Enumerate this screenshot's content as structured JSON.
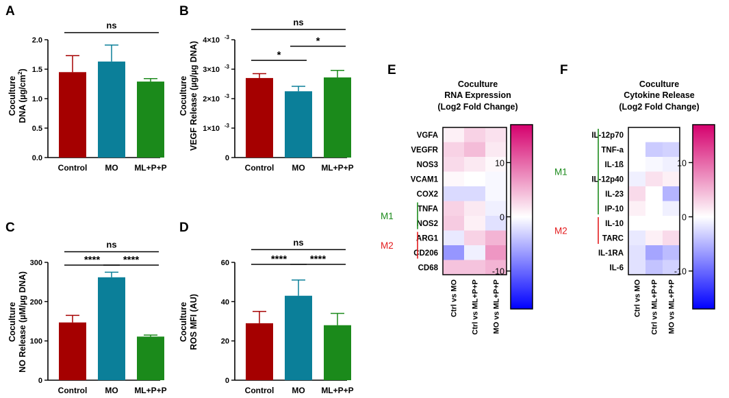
{
  "colors": {
    "control": "#a50000",
    "mo": "#0b7f99",
    "mlpp": "#1b8a1b",
    "axis": "#000000",
    "m1_marker": "#1b8a1b",
    "m2_marker": "#e31a1c",
    "heat_max": "#d5006d",
    "heat_mid": "#ffffff",
    "heat_min": "#0000ff"
  },
  "panel_letters": [
    "A",
    "B",
    "C",
    "D",
    "E",
    "F"
  ],
  "chart_data": [
    {
      "id": "A",
      "type": "bar",
      "categories": [
        "Control",
        "MO",
        "ML+P+P"
      ],
      "values": [
        1.45,
        1.63,
        1.29
      ],
      "errors": [
        0.28,
        0.28,
        0.05
      ],
      "ylabel": [
        "Coculture",
        "DNA (µg/cm²)"
      ],
      "ylim": [
        0,
        2.0
      ],
      "ticks": [
        0.0,
        0.5,
        1.0,
        1.5,
        2.0
      ],
      "tick_labels": [
        "0.0",
        "0.5",
        "1.0",
        "1.5",
        "2.0"
      ],
      "sig": [
        {
          "from": 0,
          "to": 2,
          "label": "ns",
          "y": 2.12
        }
      ]
    },
    {
      "id": "B",
      "type": "bar",
      "categories": [
        "Control",
        "MO",
        "ML+P+P"
      ],
      "values": [
        2.7,
        2.25,
        2.72
      ],
      "errors": [
        0.15,
        0.17,
        0.24
      ],
      "ylabel": [
        "Coculture",
        "VEGF Release (µg/µg DNA)"
      ],
      "ylim": [
        0,
        4
      ],
      "ticks": [
        0,
        1,
        2,
        3,
        4
      ],
      "tick_labels": [
        "0",
        "1×10",
        "2×10",
        "3×10",
        "4×10"
      ],
      "tick_exp": [
        "",
        "-3",
        "-3",
        "-3",
        "-3"
      ],
      "sig": [
        {
          "from": 0,
          "to": 2,
          "label": "ns",
          "y": 4.35
        },
        {
          "from": 1,
          "to": 2,
          "label": "*",
          "y": 3.78
        },
        {
          "from": 0,
          "to": 1,
          "label": "*",
          "y": 3.3
        }
      ]
    },
    {
      "id": "C",
      "type": "bar",
      "categories": [
        "Control",
        "MO",
        "ML+P+P"
      ],
      "values": [
        147,
        262,
        111
      ],
      "errors": [
        18,
        13,
        4
      ],
      "ylabel": [
        "Coculture",
        "NO Release (µM/µg DNA)"
      ],
      "ylim": [
        0,
        300
      ],
      "ticks": [
        0,
        100,
        200,
        300
      ],
      "tick_labels": [
        "0",
        "100",
        "200",
        "300"
      ],
      "sig": [
        {
          "from": 0,
          "to": 2,
          "label": "ns",
          "y": 327
        },
        {
          "from": 0,
          "to": 1,
          "label": "****",
          "y": 293
        },
        {
          "from": 1,
          "to": 2,
          "label": "****",
          "y": 293
        }
      ]
    },
    {
      "id": "D",
      "type": "bar",
      "categories": [
        "Control",
        "MO",
        "ML+P+P"
      ],
      "values": [
        29,
        43,
        28
      ],
      "errors": [
        6,
        8,
        6
      ],
      "ylabel": [
        "Coculture",
        "ROS MFI (AU)"
      ],
      "ylim": [
        0,
        60
      ],
      "ticks": [
        0,
        20,
        40,
        60
      ],
      "tick_labels": [
        "0",
        "20",
        "40",
        "60"
      ],
      "sig": [
        {
          "from": 0,
          "to": 2,
          "label": "ns",
          "y": 66.5
        },
        {
          "from": 0,
          "to": 1,
          "label": "****",
          "y": 59
        },
        {
          "from": 1,
          "to": 2,
          "label": "****",
          "y": 59
        }
      ]
    },
    {
      "id": "E",
      "type": "heatmap",
      "title": [
        "Coculture",
        "RNA Expression",
        "(Log2 Fold Change)"
      ],
      "rows": [
        "VGFA",
        "VEGFR",
        "NOS3",
        "VCAM1",
        "COX2",
        "TNFA",
        "NOS2",
        "ARG1",
        "CD206",
        "CD68"
      ],
      "cols": [
        "Ctrl vs MO",
        "Ctrl vs ML+P+P",
        "MO vs ML+P+P"
      ],
      "values": [
        [
          1,
          3,
          2
        ],
        [
          3,
          4.5,
          1.5
        ],
        [
          2.5,
          1.5,
          0.5
        ],
        [
          0.5,
          0,
          -0.5
        ],
        [
          -2.5,
          -2.5,
          -0.5
        ],
        [
          3,
          1.5,
          -1
        ],
        [
          3.5,
          1,
          -2
        ],
        [
          -1.5,
          3,
          5
        ],
        [
          -7,
          -1,
          7
        ],
        [
          4,
          4,
          5
        ]
      ],
      "colorbar": {
        "range": [
          -17,
          17
        ],
        "ticks": [
          10,
          0,
          -10
        ],
        "tick_labels": [
          "10",
          "0",
          "-10"
        ]
      },
      "groups": [
        {
          "label": "M1",
          "color_key": "m1_marker"
        },
        {
          "label": "M2",
          "color_key": "m2_marker"
        }
      ]
    },
    {
      "id": "F",
      "type": "heatmap",
      "title": [
        "Coculture",
        "Cytokine Release",
        "(Log2 Fold Change)"
      ],
      "rows": [
        "IL-12p70",
        "TNF-a",
        "IL-1ß",
        "IL-12p40",
        "IL-23",
        "IP-10",
        "IL-10",
        "TARC",
        "IL-1RA",
        "IL-6"
      ],
      "cols": [
        "Ctrl vs MO",
        "Ctrl vs ML+P+P",
        "MO vs ML+P+P"
      ],
      "values": [
        [
          0,
          0,
          0
        ],
        [
          0,
          -3.5,
          -3
        ],
        [
          0,
          -0.5,
          -1
        ],
        [
          -1,
          2,
          1
        ],
        [
          2.5,
          0,
          -5
        ],
        [
          1,
          0,
          -1
        ],
        [
          0,
          0,
          0
        ],
        [
          -1.5,
          1,
          2.5
        ],
        [
          -2,
          -6,
          -4.5
        ],
        [
          -2,
          -4,
          -3
        ]
      ],
      "colorbar": {
        "range": [
          -17,
          17
        ],
        "ticks": [
          10,
          0,
          -10
        ],
        "tick_labels": [
          "10",
          "0",
          "-10"
        ]
      },
      "groups": [
        {
          "label": "M1",
          "color_key": "m1_marker"
        },
        {
          "label": "M2",
          "color_key": "m2_marker"
        }
      ]
    }
  ]
}
